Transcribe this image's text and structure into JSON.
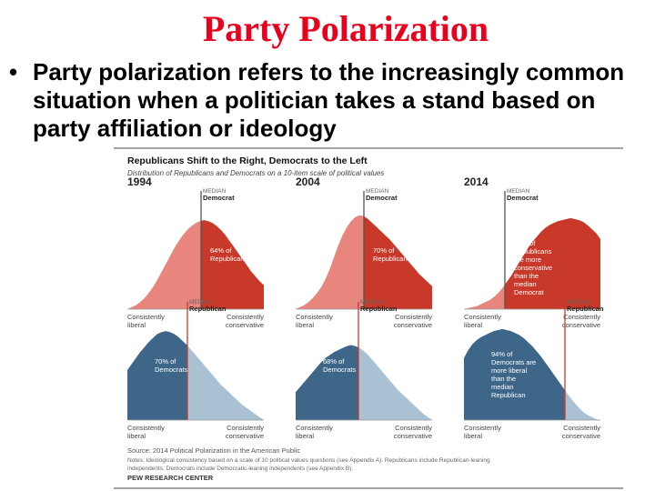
{
  "slide": {
    "title": "Party Polarization",
    "bullet": "Party polarization refers to the increasingly common situation when a politician takes a stand based on party affiliation or ideology"
  },
  "chart_data": {
    "type": "area",
    "title": "Republicans Shift to the Right, Democrats to the Left",
    "subtitle": "Distribution of Republicans and Democrats on a 10-item scale of political values",
    "xlabel_left": "Consistently liberal",
    "xlabel_right": "Consistently conservative",
    "colors": {
      "rep_dark": "#c8392a",
      "rep_light": "#e8857c",
      "dem_dark": "#3d6689",
      "dem_light": "#a9c1d3",
      "median_line": "#555555",
      "median_line_rep": "#c8392a"
    },
    "panels": [
      {
        "year": "1994",
        "party": "Republicans",
        "median_label": "MEDIAN",
        "median_party": "Democrat",
        "median_x": 0.54,
        "annotation": "64% of Republicans",
        "shape": [
          0,
          2,
          4,
          7,
          11,
          16,
          22,
          29,
          37,
          45,
          53,
          61,
          68,
          74,
          79,
          83,
          86,
          88,
          89,
          88,
          86,
          83,
          79,
          74,
          68,
          62,
          56,
          50,
          44,
          38,
          33,
          28,
          24
        ]
      },
      {
        "year": "2004",
        "party": "Republicans",
        "median_label": "MEDIAN",
        "median_party": "Democrat",
        "median_x": 0.5,
        "annotation": "70% of Republicans",
        "shape": [
          0,
          2,
          4,
          7,
          11,
          16,
          22,
          30,
          40,
          52,
          64,
          74,
          82,
          88,
          92,
          94,
          93,
          90,
          86,
          82,
          78,
          74,
          70,
          65,
          60,
          55,
          50,
          45,
          40,
          35,
          31,
          27,
          23
        ]
      },
      {
        "year": "2014",
        "party": "Republicans",
        "median_label": "MEDIAN",
        "median_party": "Democrat",
        "median_x": 0.3,
        "annotation": "92% of Republicans are more conservative than the median Democrat",
        "shape": [
          0,
          1,
          2,
          3,
          5,
          7,
          9,
          12,
          16,
          21,
          27,
          33,
          40,
          47,
          54,
          61,
          67,
          72,
          77,
          81,
          84,
          86,
          88,
          89,
          90,
          91,
          90,
          89,
          87,
          84,
          80,
          76,
          70
        ]
      },
      {
        "year": "",
        "party": "Democrats",
        "median_label": "MEDIAN",
        "median_party": "Republican",
        "median_x": 0.44,
        "annotation": "70% of Democrats",
        "shape": [
          50,
          56,
          62,
          68,
          73,
          78,
          82,
          86,
          88,
          89,
          88,
          86,
          83,
          79,
          75,
          70,
          65,
          60,
          55,
          50,
          45,
          40,
          35,
          31,
          27,
          23,
          19,
          15,
          12,
          9,
          6,
          3,
          0
        ]
      },
      {
        "year": "",
        "party": "Democrats",
        "median_label": "MEDIAN",
        "median_party": "Republican",
        "median_x": 0.46,
        "annotation": "68% of Democrats",
        "shape": [
          28,
          33,
          38,
          43,
          48,
          53,
          58,
          62,
          65,
          68,
          70,
          72,
          74,
          75,
          74,
          72,
          69,
          65,
          60,
          55,
          50,
          45,
          40,
          35,
          30,
          26,
          22,
          18,
          14,
          10,
          6,
          3,
          0
        ]
      },
      {
        "year": "",
        "party": "Democrats",
        "median_label": "MEDIAN",
        "median_party": "Republican",
        "median_x": 0.74,
        "annotation": "94% of Democrats are more liberal than the median Republican",
        "shape": [
          62,
          70,
          76,
          80,
          83,
          85,
          87,
          89,
          90,
          91,
          90,
          89,
          87,
          85,
          82,
          78,
          74,
          69,
          64,
          58,
          52,
          46,
          40,
          34,
          28,
          22,
          17,
          12,
          8,
          5,
          3,
          1,
          0
        ]
      }
    ],
    "source_lines": [
      "Source: 2014 Political Polarization in the American Public",
      "Notes: Ideological consistency based on a scale of 10 political values questions (see Appendix A). Republicans include Republican-leaning",
      "independents; Democrats include Democratic-leaning independents (see Appendix B)."
    ],
    "publisher": "PEW RESEARCH CENTER"
  }
}
